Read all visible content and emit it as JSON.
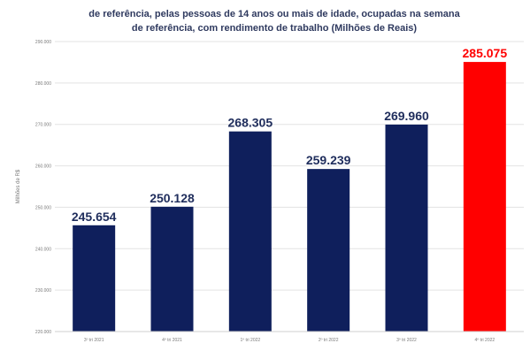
{
  "chart_data": {
    "type": "bar",
    "title_lines": [
      "de referência, pelas pessoas de 14 anos ou mais de idade, ocupadas na semana",
      "de referência, com rendimento de trabalho (Milhões de Reais)"
    ],
    "ylabel": "Milhões de R$",
    "ylim": [
      220000,
      290000
    ],
    "yticks": [
      220000,
      230000,
      240000,
      250000,
      260000,
      270000,
      280000,
      290000
    ],
    "ytick_labels": [
      "220.000",
      "230.000",
      "240.000",
      "250.000",
      "260.000",
      "270.000",
      "280.000",
      "290.000"
    ],
    "categories": [
      "3º tri 2021",
      "4º tri 2021",
      "1º tri 2022",
      "2º tri 2022",
      "3º tri 2022",
      "4º tri 2022"
    ],
    "values": [
      245654,
      250128,
      268305,
      259239,
      269960,
      285075
    ],
    "value_labels": [
      "245.654",
      "250.128",
      "268.305",
      "259.239",
      "269.960",
      "285.075"
    ],
    "colors": {
      "bar_default": "#0f1f5c",
      "bar_highlight": "#ff0000",
      "label_default": "#1f2d5c",
      "label_highlight": "#ff0000",
      "grid": "#e3e3e3"
    },
    "highlight_index": 5,
    "grid": true
  }
}
